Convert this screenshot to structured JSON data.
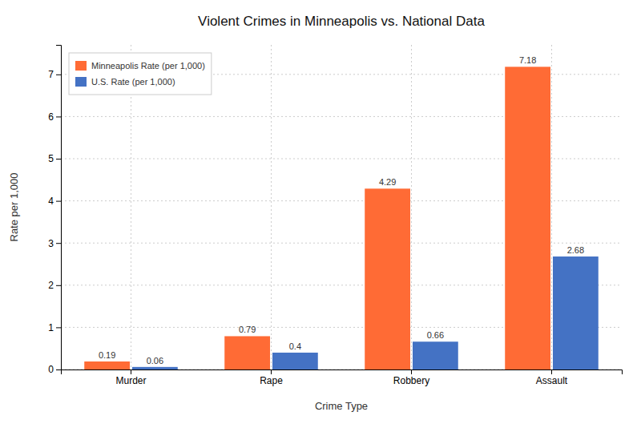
{
  "chart_data": {
    "type": "bar",
    "title": "Violent Crimes in Minneapolis vs. National Data",
    "xlabel": "Crime Type",
    "ylabel": "Rate per 1,000",
    "categories": [
      "Murder",
      "Rape",
      "Robbery",
      "Assault"
    ],
    "series": [
      {
        "name": "Minneapolis Rate (per 1,000)",
        "color": "#FF6B35",
        "values": [
          0.19,
          0.79,
          4.29,
          7.18
        ]
      },
      {
        "name": "U.S. Rate (per 1,000)",
        "color": "#4472C4",
        "values": [
          0.06,
          0.4,
          0.66,
          2.68
        ]
      }
    ],
    "ylim": [
      0,
      7.7
    ],
    "yticks": [
      0,
      1,
      2,
      3,
      4,
      5,
      6,
      7
    ],
    "grid": true,
    "legend": "upper left",
    "data_labels": true
  }
}
